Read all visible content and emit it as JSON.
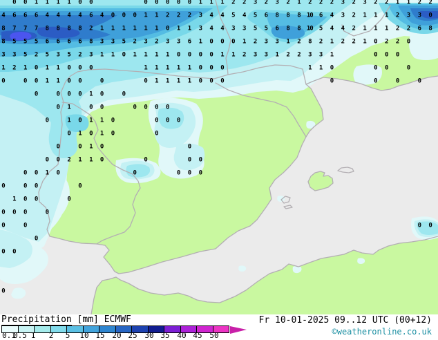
{
  "map": {
    "palette": {
      "sea": "#ebebeb",
      "land": "#c9f8a0",
      "border": "#b3afb3",
      "precip_shades": [
        "#e1f8f9",
        "#c4f1f4",
        "#9de7ef",
        "#79d8e9",
        "#54bce3",
        "#3fa0da",
        "#2f7ccc",
        "#2b5cc4",
        "#4b55ef"
      ],
      "number_color": "#000000"
    },
    "precip_values": [
      [
        1,
        0,
        0
      ],
      [
        2,
        0,
        0
      ],
      [
        3,
        0,
        1
      ],
      [
        4,
        0,
        1
      ],
      [
        5,
        0,
        1
      ],
      [
        6,
        0,
        1
      ],
      [
        7,
        0,
        0
      ],
      [
        8,
        0,
        0
      ],
      [
        13,
        0,
        0
      ],
      [
        14,
        0,
        0
      ],
      [
        15,
        0,
        0
      ],
      [
        16,
        0,
        0
      ],
      [
        17,
        0,
        0
      ],
      [
        18,
        0,
        1
      ],
      [
        19,
        0,
        1
      ],
      [
        20,
        0,
        1
      ],
      [
        21,
        0,
        2
      ],
      [
        22,
        0,
        2
      ],
      [
        23,
        0,
        3
      ],
      [
        24,
        0,
        2
      ],
      [
        25,
        0,
        3
      ],
      [
        26,
        0,
        2
      ],
      [
        27,
        0,
        1
      ],
      [
        28,
        0,
        2
      ],
      [
        29,
        0,
        2
      ],
      [
        30,
        0,
        2
      ],
      [
        31,
        0,
        3
      ],
      [
        32,
        0,
        2
      ],
      [
        33,
        0,
        3
      ],
      [
        34,
        0,
        2
      ],
      [
        35,
        0,
        2
      ],
      [
        36,
        0,
        1
      ],
      [
        37,
        0,
        1
      ],
      [
        38,
        0,
        2
      ],
      [
        39,
        0,
        2
      ],
      [
        0,
        1,
        4
      ],
      [
        1,
        1,
        6
      ],
      [
        2,
        1,
        6
      ],
      [
        3,
        1,
        6
      ],
      [
        4,
        1,
        4
      ],
      [
        5,
        1,
        4
      ],
      [
        6,
        1,
        4
      ],
      [
        7,
        1,
        4
      ],
      [
        8,
        1,
        6
      ],
      [
        9,
        1,
        4
      ],
      [
        10,
        1,
        0
      ],
      [
        11,
        1,
        0
      ],
      [
        12,
        1,
        0
      ],
      [
        13,
        1,
        1
      ],
      [
        14,
        1,
        1
      ],
      [
        15,
        1,
        2
      ],
      [
        16,
        1,
        2
      ],
      [
        17,
        1,
        2
      ],
      [
        18,
        1,
        3
      ],
      [
        19,
        1,
        4
      ],
      [
        20,
        1,
        4
      ],
      [
        21,
        1,
        5
      ],
      [
        22,
        1,
        4
      ],
      [
        23,
        1,
        5
      ],
      [
        24,
        1,
        6
      ],
      [
        25,
        1,
        8
      ],
      [
        26,
        1,
        8
      ],
      [
        27,
        1,
        8
      ],
      [
        28,
        1,
        10
      ],
      [
        29,
        1,
        6
      ],
      [
        30,
        1,
        4
      ],
      [
        31,
        1,
        3
      ],
      [
        32,
        1,
        2
      ],
      [
        33,
        1,
        1
      ],
      [
        34,
        1,
        1
      ],
      [
        35,
        1,
        1
      ],
      [
        36,
        1,
        2
      ],
      [
        37,
        1,
        3
      ],
      [
        38,
        1,
        3
      ],
      [
        39,
        1,
        0
      ],
      [
        0,
        2,
        8
      ],
      [
        1,
        2,
        7
      ],
      [
        2,
        2,
        7
      ],
      [
        3,
        2,
        7
      ],
      [
        4,
        2,
        8
      ],
      [
        5,
        2,
        8
      ],
      [
        6,
        2,
        8
      ],
      [
        7,
        2,
        8
      ],
      [
        8,
        2,
        2
      ],
      [
        9,
        2,
        1
      ],
      [
        10,
        2,
        1
      ],
      [
        11,
        2,
        1
      ],
      [
        12,
        2,
        1
      ],
      [
        13,
        2,
        1
      ],
      [
        14,
        2,
        1
      ],
      [
        15,
        2,
        0
      ],
      [
        16,
        2,
        1
      ],
      [
        17,
        2,
        1
      ],
      [
        18,
        2,
        3
      ],
      [
        19,
        2,
        4
      ],
      [
        20,
        2,
        4
      ],
      [
        21,
        2,
        3
      ],
      [
        22,
        2,
        3
      ],
      [
        23,
        2,
        5
      ],
      [
        24,
        2,
        5
      ],
      [
        25,
        2,
        6
      ],
      [
        26,
        2,
        8
      ],
      [
        27,
        2,
        8
      ],
      [
        28,
        2,
        10
      ],
      [
        29,
        2,
        5
      ],
      [
        30,
        2,
        4
      ],
      [
        31,
        2,
        4
      ],
      [
        32,
        2,
        2
      ],
      [
        33,
        2,
        1
      ],
      [
        34,
        2,
        1
      ],
      [
        35,
        2,
        1
      ],
      [
        36,
        2,
        2
      ],
      [
        37,
        2,
        2
      ],
      [
        38,
        2,
        6
      ],
      [
        39,
        2,
        8
      ],
      [
        0,
        3,
        8
      ],
      [
        1,
        3,
        5
      ],
      [
        2,
        3,
        5
      ],
      [
        3,
        3,
        5
      ],
      [
        4,
        3,
        6
      ],
      [
        5,
        3,
        6
      ],
      [
        6,
        3,
        6
      ],
      [
        7,
        3,
        6
      ],
      [
        8,
        3,
        8
      ],
      [
        9,
        3,
        3
      ],
      [
        10,
        3,
        3
      ],
      [
        11,
        3,
        5
      ],
      [
        12,
        3,
        2
      ],
      [
        13,
        3,
        3
      ],
      [
        14,
        3,
        2
      ],
      [
        15,
        3,
        3
      ],
      [
        16,
        3,
        3
      ],
      [
        17,
        3,
        6
      ],
      [
        18,
        3,
        1
      ],
      [
        19,
        3,
        0
      ],
      [
        20,
        3,
        0
      ],
      [
        21,
        3,
        0
      ],
      [
        22,
        3,
        1
      ],
      [
        23,
        3,
        2
      ],
      [
        24,
        3,
        3
      ],
      [
        25,
        3,
        3
      ],
      [
        26,
        3,
        1
      ],
      [
        27,
        3,
        2
      ],
      [
        28,
        3,
        8
      ],
      [
        29,
        3,
        2
      ],
      [
        30,
        3,
        1
      ],
      [
        31,
        3,
        2
      ],
      [
        32,
        3,
        2
      ],
      [
        33,
        3,
        1
      ],
      [
        34,
        3,
        0
      ],
      [
        35,
        3,
        2
      ],
      [
        36,
        3,
        2
      ],
      [
        37,
        3,
        0
      ],
      [
        0,
        4,
        3
      ],
      [
        1,
        4,
        3
      ],
      [
        2,
        4,
        5
      ],
      [
        3,
        4,
        2
      ],
      [
        4,
        4,
        5
      ],
      [
        5,
        4,
        3
      ],
      [
        6,
        4,
        5
      ],
      [
        7,
        4,
        2
      ],
      [
        8,
        4,
        3
      ],
      [
        9,
        4,
        1
      ],
      [
        10,
        4,
        1
      ],
      [
        11,
        4,
        0
      ],
      [
        12,
        4,
        1
      ],
      [
        13,
        4,
        1
      ],
      [
        14,
        4,
        1
      ],
      [
        15,
        4,
        1
      ],
      [
        16,
        4,
        0
      ],
      [
        17,
        4,
        0
      ],
      [
        18,
        4,
        0
      ],
      [
        19,
        4,
        0
      ],
      [
        20,
        4,
        1
      ],
      [
        21,
        4,
        1
      ],
      [
        22,
        4,
        2
      ],
      [
        23,
        4,
        3
      ],
      [
        24,
        4,
        3
      ],
      [
        25,
        4,
        1
      ],
      [
        26,
        4,
        2
      ],
      [
        27,
        4,
        2
      ],
      [
        28,
        4,
        3
      ],
      [
        29,
        4,
        3
      ],
      [
        30,
        4,
        1
      ],
      [
        34,
        4,
        0
      ],
      [
        35,
        4,
        0
      ],
      [
        36,
        4,
        0
      ],
      [
        0,
        5,
        1
      ],
      [
        1,
        5,
        2
      ],
      [
        2,
        5,
        1
      ],
      [
        3,
        5,
        0
      ],
      [
        4,
        5,
        1
      ],
      [
        5,
        5,
        1
      ],
      [
        6,
        5,
        0
      ],
      [
        7,
        5,
        0
      ],
      [
        8,
        5,
        0
      ],
      [
        13,
        5,
        1
      ],
      [
        14,
        5,
        1
      ],
      [
        15,
        5,
        1
      ],
      [
        16,
        5,
        1
      ],
      [
        17,
        5,
        1
      ],
      [
        18,
        5,
        0
      ],
      [
        19,
        5,
        0
      ],
      [
        20,
        5,
        0
      ],
      [
        28,
        5,
        1
      ],
      [
        29,
        5,
        1
      ],
      [
        30,
        5,
        0
      ],
      [
        34,
        5,
        0
      ],
      [
        35,
        5,
        0
      ],
      [
        37,
        5,
        0
      ],
      [
        0,
        6,
        0
      ],
      [
        2,
        6,
        0
      ],
      [
        3,
        6,
        0
      ],
      [
        4,
        6,
        1
      ],
      [
        5,
        6,
        1
      ],
      [
        6,
        6,
        0
      ],
      [
        7,
        6,
        0
      ],
      [
        9,
        6,
        0
      ],
      [
        13,
        6,
        0
      ],
      [
        14,
        6,
        1
      ],
      [
        15,
        6,
        1
      ],
      [
        16,
        6,
        1
      ],
      [
        17,
        6,
        1
      ],
      [
        18,
        6,
        0
      ],
      [
        19,
        6,
        0
      ],
      [
        20,
        6,
        0
      ],
      [
        30,
        6,
        0
      ],
      [
        34,
        6,
        0
      ],
      [
        36,
        6,
        0
      ],
      [
        38,
        6,
        0
      ],
      [
        3,
        7,
        0
      ],
      [
        5,
        7,
        0
      ],
      [
        6,
        7,
        0
      ],
      [
        7,
        7,
        0
      ],
      [
        8,
        7,
        1
      ],
      [
        9,
        7,
        0
      ],
      [
        11,
        7,
        0
      ],
      [
        5,
        8,
        0
      ],
      [
        6,
        8,
        1
      ],
      [
        8,
        8,
        0
      ],
      [
        9,
        8,
        0
      ],
      [
        12,
        8,
        0
      ],
      [
        13,
        8,
        0
      ],
      [
        14,
        8,
        0
      ],
      [
        15,
        8,
        0
      ],
      [
        4,
        9,
        0
      ],
      [
        6,
        9,
        1
      ],
      [
        7,
        9,
        0
      ],
      [
        8,
        9,
        1
      ],
      [
        9,
        9,
        1
      ],
      [
        10,
        9,
        0
      ],
      [
        14,
        9,
        0
      ],
      [
        15,
        9,
        0
      ],
      [
        16,
        9,
        0
      ],
      [
        6,
        10,
        0
      ],
      [
        7,
        10,
        1
      ],
      [
        8,
        10,
        0
      ],
      [
        9,
        10,
        1
      ],
      [
        10,
        10,
        0
      ],
      [
        14,
        10,
        0
      ],
      [
        5,
        11,
        0
      ],
      [
        7,
        11,
        0
      ],
      [
        8,
        11,
        1
      ],
      [
        9,
        11,
        0
      ],
      [
        17,
        11,
        0
      ],
      [
        4,
        12,
        0
      ],
      [
        5,
        12,
        0
      ],
      [
        6,
        12,
        2
      ],
      [
        7,
        12,
        1
      ],
      [
        8,
        12,
        1
      ],
      [
        9,
        12,
        0
      ],
      [
        13,
        12,
        0
      ],
      [
        17,
        12,
        0
      ],
      [
        18,
        12,
        0
      ],
      [
        2,
        13,
        0
      ],
      [
        3,
        13,
        0
      ],
      [
        4,
        13,
        1
      ],
      [
        5,
        13,
        0
      ],
      [
        12,
        13,
        0
      ],
      [
        16,
        13,
        0
      ],
      [
        17,
        13,
        0
      ],
      [
        18,
        13,
        0
      ],
      [
        0,
        14,
        0
      ],
      [
        2,
        14,
        0
      ],
      [
        3,
        14,
        0
      ],
      [
        7,
        14,
        0
      ],
      [
        1,
        15,
        1
      ],
      [
        2,
        15,
        0
      ],
      [
        3,
        15,
        0
      ],
      [
        6,
        15,
        0
      ],
      [
        0,
        16,
        0
      ],
      [
        1,
        16,
        0
      ],
      [
        2,
        16,
        0
      ],
      [
        4,
        16,
        0
      ],
      [
        0,
        17,
        0
      ],
      [
        2,
        17,
        0
      ],
      [
        38,
        17,
        0
      ],
      [
        39,
        17,
        0
      ],
      [
        3,
        18,
        0
      ],
      [
        0,
        19,
        0
      ],
      [
        1,
        19,
        0
      ],
      [
        0,
        22,
        0
      ]
    ]
  },
  "legend": {
    "title": "Precipitation",
    "units": "[mm]",
    "model": "ECMWF",
    "ticks": [
      "0.1",
      "0.5",
      "1",
      "2",
      "5",
      "10",
      "15",
      "20",
      "25",
      "30",
      "35",
      "40",
      "45",
      "50"
    ],
    "colors": [
      "#e9fcfc",
      "#c8f4f4",
      "#a5ecec",
      "#82dcec",
      "#5ac0e4",
      "#42a4dc",
      "#2f86d0",
      "#2766c4",
      "#1d42b0",
      "#111c90",
      "#7c1fd4",
      "#ac22d8",
      "#d025d0",
      "#ec35c4"
    ],
    "arrow_color": "#c820a8"
  },
  "footer": {
    "datetime": "Fr 10-01-2025 09..12 UTC (00+12)",
    "copyright": "©weatheronline.co.uk",
    "copyright_color": "#1b8fa2"
  }
}
